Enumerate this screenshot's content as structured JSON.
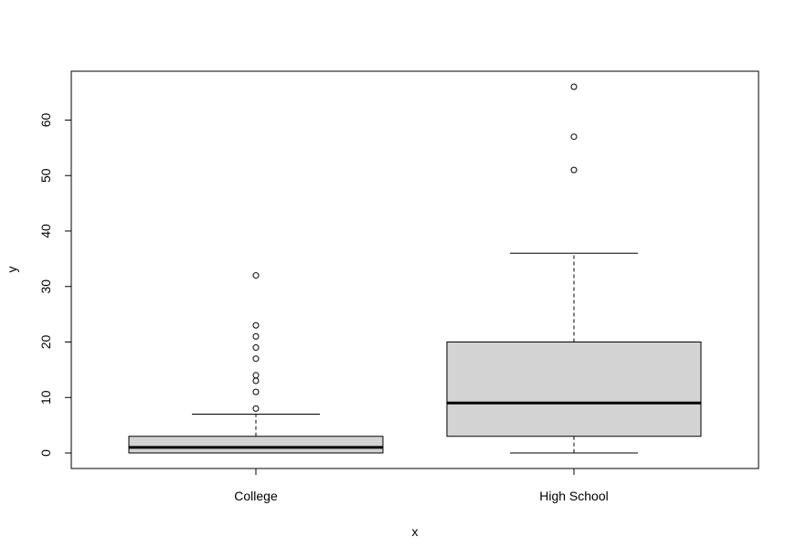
{
  "chart_data": {
    "type": "box",
    "title": "",
    "xlabel": "x",
    "ylabel": "y",
    "ylim": [
      -2.8,
      68.8
    ],
    "yticks": [
      0,
      10,
      20,
      30,
      40,
      50,
      60
    ],
    "categories": [
      "College",
      "High School"
    ],
    "boxes": [
      {
        "category": "College",
        "whisker_low": 0,
        "q1": 0,
        "median": 1,
        "q3": 3,
        "whisker_high": 7,
        "outliers": [
          8,
          11,
          13,
          14,
          17,
          19,
          21,
          23,
          32
        ]
      },
      {
        "category": "High School",
        "whisker_low": 0,
        "q1": 3,
        "median": 9,
        "q3": 20,
        "whisker_high": 36,
        "outliers": [
          51,
          57,
          66
        ]
      }
    ],
    "colors": {
      "box_fill": "#d3d3d3",
      "stroke": "#000000"
    }
  }
}
